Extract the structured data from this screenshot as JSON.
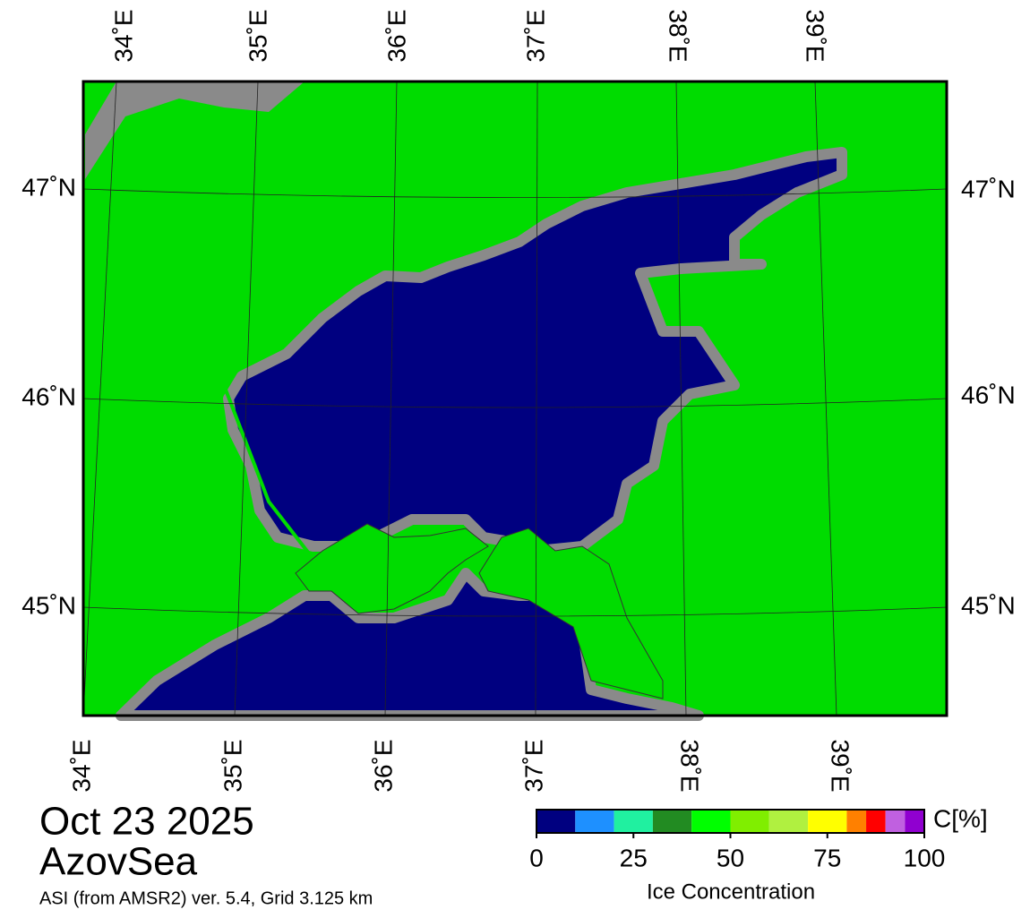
{
  "map": {
    "top_labels": [
      "34˚E",
      "35˚E",
      "36˚E",
      "37˚E",
      "38˚E",
      "39˚E"
    ],
    "bottom_labels": [
      "34˚E",
      "35˚E",
      "36˚E",
      "37˚E",
      "38˚E",
      "39˚E"
    ],
    "left_labels": [
      "47˚N",
      "46˚N",
      "45˚N"
    ],
    "right_labels": [
      "47˚N",
      "46˚N",
      "45˚N"
    ]
  },
  "caption": {
    "date": "Oct 23 2025",
    "region": "AzovSea",
    "source": "ASI (from AMSR2) ver. 5.4,  Grid 3.125 km"
  },
  "colorbar": {
    "unit": "C[%]",
    "title": "Ice Concentration",
    "range": [
      0,
      100
    ],
    "ticks": [
      0,
      25,
      50,
      75,
      100
    ],
    "bounds": [
      0,
      10,
      20,
      30,
      40,
      50,
      60,
      70,
      80,
      85,
      90,
      95,
      100
    ],
    "colors": [
      "#000080",
      "#1e90ff",
      "#20f0a0",
      "#228b22",
      "#00ff00",
      "#80ee00",
      "#b0f040",
      "#ffff00",
      "#ff8000",
      "#ff0000",
      "#c060e0",
      "#9000d0"
    ]
  }
}
